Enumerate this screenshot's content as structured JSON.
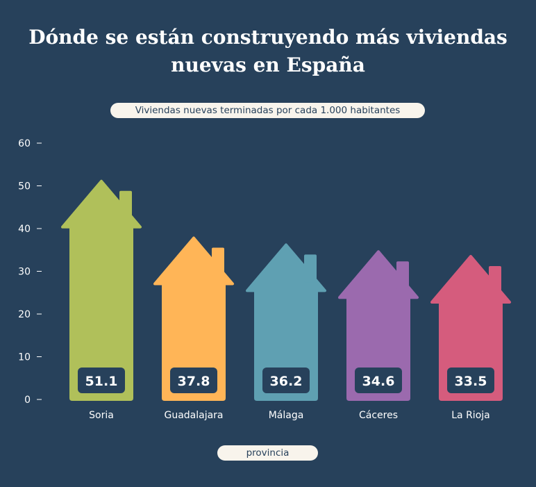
{
  "chart_data": {
    "type": "bar",
    "title": "Dónde se están construyendo más viviendas nuevas en España",
    "subtitle": "Viviendas nuevas terminadas por cada 1.000 habitantes",
    "xlabel": "provincia",
    "ylabel": "",
    "ylim": [
      0,
      60
    ],
    "yticks": [
      "0",
      "10",
      "20",
      "30",
      "40",
      "50",
      "60"
    ],
    "categories": [
      "Soria",
      "Guadalajara",
      "Málaga",
      "Cáceres",
      "La Rioja"
    ],
    "values": [
      51.1,
      37.8,
      36.2,
      34.6,
      33.5
    ],
    "value_labels": [
      "51.1",
      "37.8",
      "36.2",
      "34.6",
      "33.5"
    ],
    "colors": [
      "#b0c05a",
      "#ffb557",
      "#5fa0b2",
      "#9b6aae",
      "#d55c7d"
    ],
    "bar_shape": "house",
    "grid": false,
    "background": "#27415b"
  }
}
